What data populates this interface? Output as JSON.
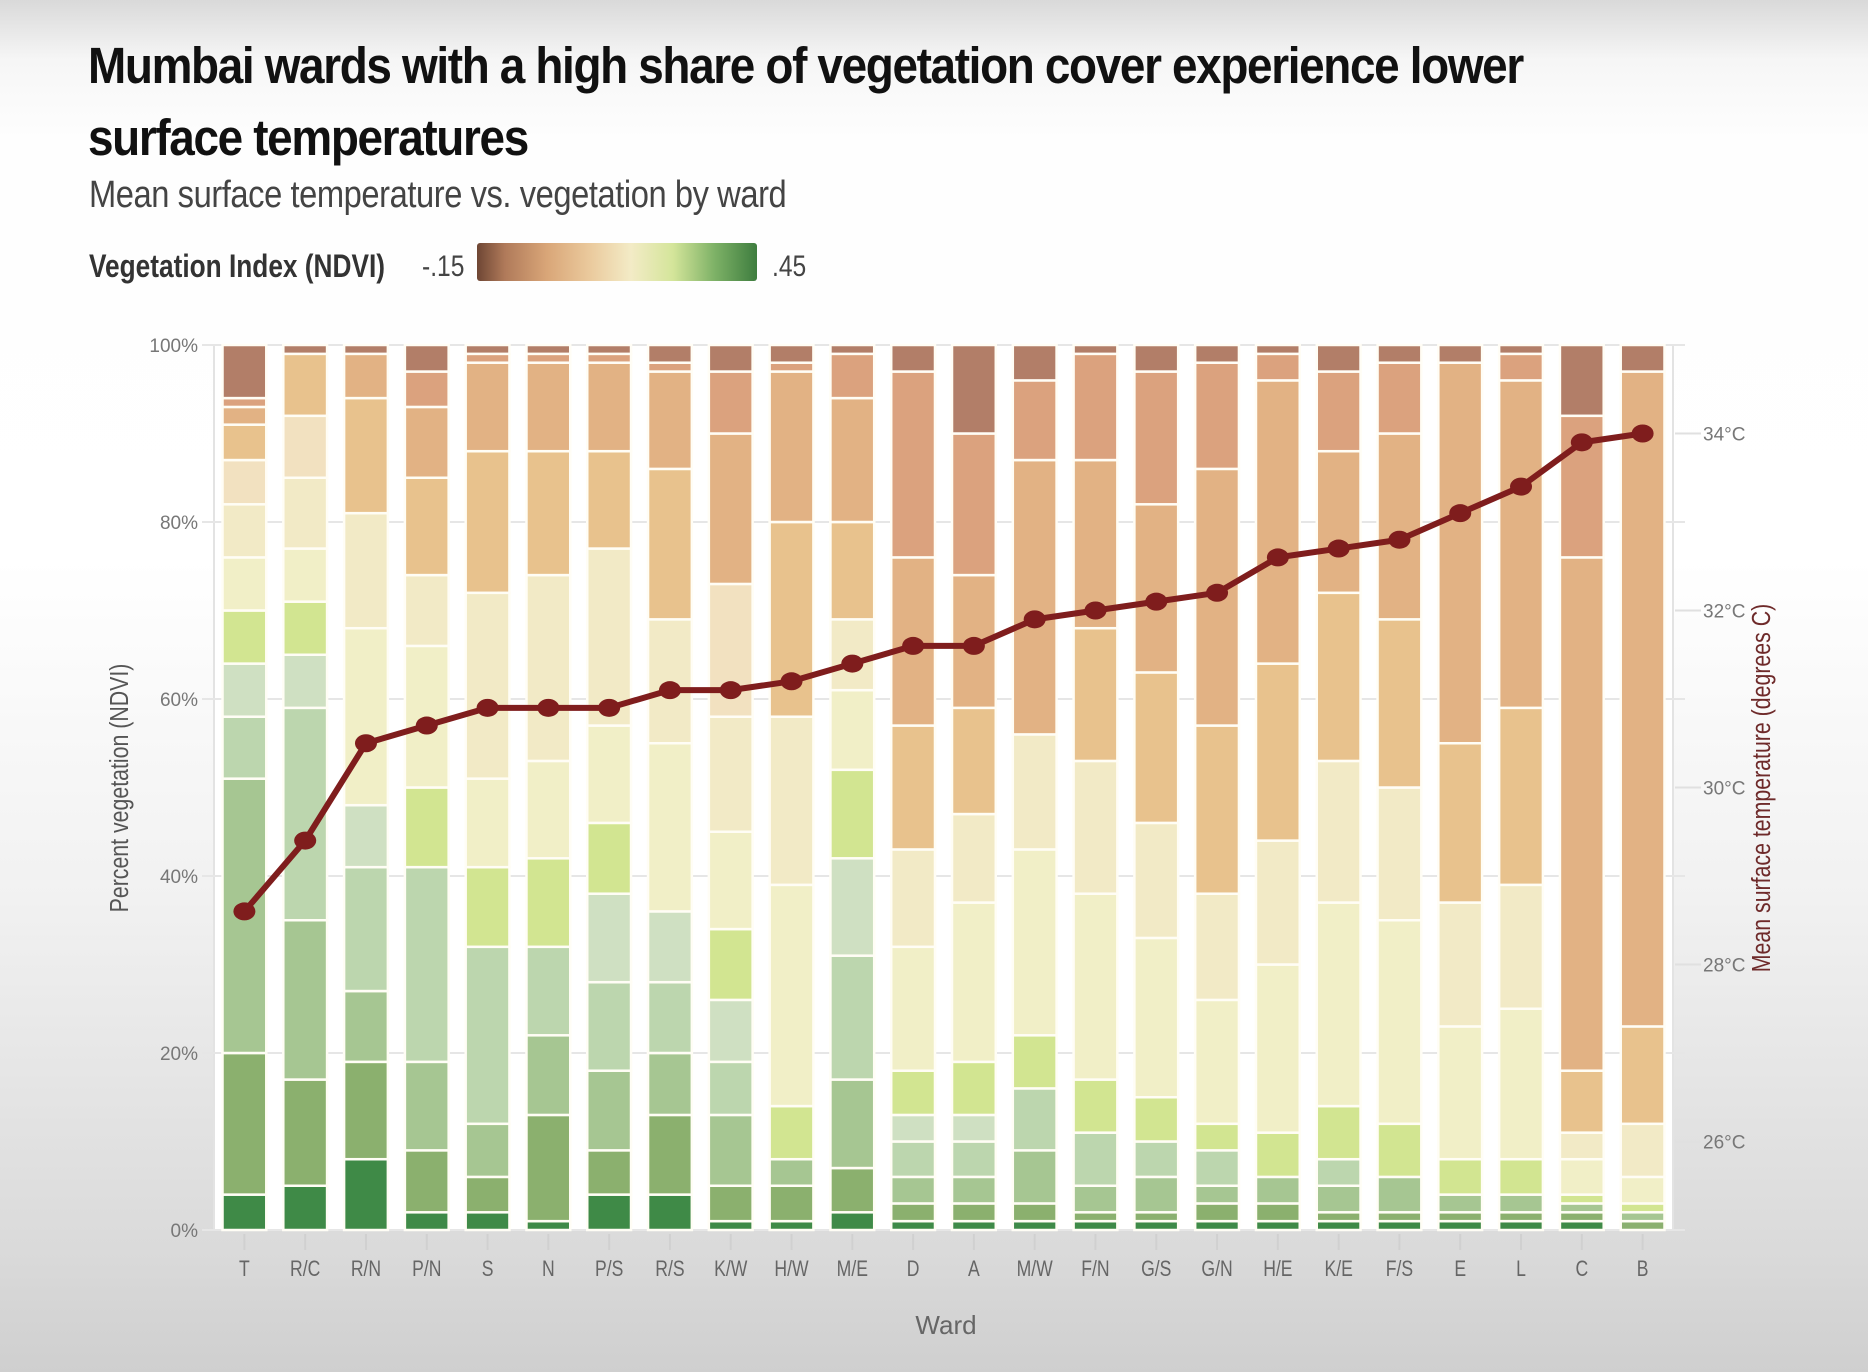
{
  "header": {
    "title": "Mumbai wards with a high share of vegetation cover experience lower surface temperatures",
    "subtitle": "Mean surface temperature vs. vegetation by ward"
  },
  "legend": {
    "label": "Vegetation Index (NDVI)",
    "min_label": "-.15",
    "max_label": ".45",
    "colors": [
      "#6e4634",
      "#b07a5a",
      "#d9a678",
      "#eac99c",
      "#f3ebc6",
      "#d4e59a",
      "#7db166",
      "#3e7d3f"
    ]
  },
  "chart_data": {
    "type": "bar",
    "stacked": true,
    "title": "Mumbai wards with a high share of vegetation cover experience lower surface temperatures",
    "subtitle": "Mean surface temperature vs. vegetation by ward",
    "xlabel": "Ward",
    "ylabel": "Percent vegetation (NDVI)",
    "y2label": "Mean surface temperature (degrees C)",
    "ylim": [
      0,
      100
    ],
    "y2lim": [
      25,
      35
    ],
    "yticks": [
      "0%",
      "20%",
      "40%",
      "60%",
      "80%",
      "100%"
    ],
    "y2ticks": [
      "26°C",
      "28°C",
      "30°C",
      "32°C",
      "34°C"
    ],
    "y2tick_values": [
      26,
      28,
      30,
      32,
      34
    ],
    "grid": true,
    "legend_position": "top-left",
    "categories": [
      "T",
      "R/C",
      "R/N",
      "P/N",
      "S",
      "N",
      "P/S",
      "R/S",
      "K/W",
      "H/W",
      "M/E",
      "D",
      "A",
      "M/W",
      "F/N",
      "G/S",
      "G/N",
      "H/E",
      "K/E",
      "F/S",
      "E",
      "L",
      "C",
      "B"
    ],
    "ndvi_bins": [
      "0.45",
      "0.40",
      "0.35",
      "0.30",
      "0.25",
      "0.20",
      "0.15",
      "0.10",
      "0.05",
      "0.00",
      "-0.05",
      "-0.10",
      "-0.15"
    ],
    "bin_colors": [
      "#3f8a47",
      "#8bb06e",
      "#a6c692",
      "#bcd6ae",
      "#cfe0c2",
      "#d2e591",
      "#f1efc7",
      "#f2eac6",
      "#f2e1c0",
      "#e8c28d",
      "#e2b284",
      "#dba27e",
      "#b27e68"
    ],
    "series": [
      {
        "name": "T",
        "segments": [
          4,
          16,
          31,
          7,
          6,
          6,
          6,
          6,
          5,
          4,
          2,
          1,
          6
        ]
      },
      {
        "name": "R/C",
        "segments": [
          5,
          12,
          18,
          24,
          6,
          6,
          6,
          8,
          7,
          7,
          0,
          0,
          1
        ]
      },
      {
        "name": "R/N",
        "segments": [
          8,
          11,
          8,
          14,
          7,
          0,
          20,
          13,
          0,
          13,
          5,
          0,
          1
        ]
      },
      {
        "name": "P/N",
        "segments": [
          2,
          7,
          10,
          22,
          0,
          9,
          16,
          8,
          0,
          11,
          8,
          4,
          3
        ]
      },
      {
        "name": "S",
        "segments": [
          2,
          4,
          6,
          20,
          0,
          9,
          10,
          21,
          0,
          16,
          10,
          1,
          1
        ]
      },
      {
        "name": "N",
        "segments": [
          1,
          12,
          9,
          10,
          0,
          10,
          11,
          21,
          0,
          14,
          10,
          1,
          1
        ]
      },
      {
        "name": "P/S",
        "segments": [
          4,
          5,
          9,
          10,
          10,
          8,
          11,
          20,
          0,
          11,
          10,
          1,
          1
        ]
      },
      {
        "name": "R/S",
        "segments": [
          4,
          9,
          7,
          8,
          8,
          0,
          19,
          14,
          0,
          17,
          11,
          1,
          2
        ]
      },
      {
        "name": "K/W",
        "segments": [
          1,
          4,
          8,
          6,
          7,
          8,
          11,
          13,
          15,
          0,
          17,
          7,
          3
        ]
      },
      {
        "name": "H/W",
        "segments": [
          1,
          4,
          3,
          0,
          0,
          6,
          25,
          19,
          0,
          22,
          17,
          1,
          2
        ]
      },
      {
        "name": "M/E",
        "segments": [
          2,
          5,
          10,
          14,
          11,
          10,
          9,
          8,
          0,
          11,
          14,
          5,
          1
        ]
      },
      {
        "name": "D",
        "segments": [
          1,
          2,
          3,
          4,
          3,
          5,
          14,
          11,
          0,
          14,
          19,
          21,
          3
        ]
      },
      {
        "name": "A",
        "segments": [
          1,
          2,
          3,
          4,
          3,
          6,
          18,
          10,
          0,
          12,
          15,
          16,
          10
        ]
      },
      {
        "name": "M/W",
        "segments": [
          1,
          2,
          6,
          7,
          0,
          6,
          21,
          13,
          0,
          0,
          31,
          9,
          4
        ]
      },
      {
        "name": "F/N",
        "segments": [
          1,
          1,
          3,
          6,
          0,
          6,
          21,
          15,
          0,
          15,
          19,
          12,
          1
        ]
      },
      {
        "name": "G/S",
        "segments": [
          1,
          1,
          4,
          4,
          0,
          5,
          18,
          13,
          0,
          17,
          19,
          15,
          3
        ]
      },
      {
        "name": "G/N",
        "segments": [
          1,
          2,
          2,
          4,
          0,
          3,
          14,
          12,
          0,
          19,
          29,
          12,
          2
        ]
      },
      {
        "name": "H/E",
        "segments": [
          1,
          2,
          3,
          0,
          0,
          5,
          19,
          14,
          0,
          20,
          32,
          3,
          1
        ]
      },
      {
        "name": "K/E",
        "segments": [
          1,
          1,
          3,
          3,
          0,
          6,
          23,
          16,
          0,
          19,
          16,
          9,
          3
        ]
      },
      {
        "name": "F/S",
        "segments": [
          1,
          1,
          4,
          0,
          0,
          6,
          23,
          15,
          0,
          19,
          21,
          8,
          2
        ]
      },
      {
        "name": "E",
        "segments": [
          1,
          1,
          2,
          0,
          0,
          4,
          15,
          14,
          0,
          18,
          43,
          0,
          2
        ]
      },
      {
        "name": "L",
        "segments": [
          1,
          1,
          2,
          0,
          0,
          4,
          17,
          14,
          0,
          20,
          37,
          3,
          1
        ]
      },
      {
        "name": "C",
        "segments": [
          1,
          1,
          1,
          0,
          0,
          1,
          4,
          3,
          0,
          7,
          58,
          16,
          8
        ]
      },
      {
        "name": "B",
        "segments": [
          0,
          1,
          1,
          0,
          0,
          1,
          3,
          6,
          0,
          11,
          74,
          0,
          3
        ]
      }
    ],
    "temperature": {
      "name": "Mean surface temperature (degrees C)",
      "color": "#7f1d1d",
      "values": [
        28.6,
        29.4,
        30.5,
        30.7,
        30.9,
        30.9,
        30.9,
        31.1,
        31.1,
        31.2,
        31.4,
        31.6,
        31.6,
        31.9,
        32.0,
        32.1,
        32.2,
        32.6,
        32.7,
        32.8,
        33.1,
        33.4,
        33.9,
        34.0
      ]
    }
  }
}
